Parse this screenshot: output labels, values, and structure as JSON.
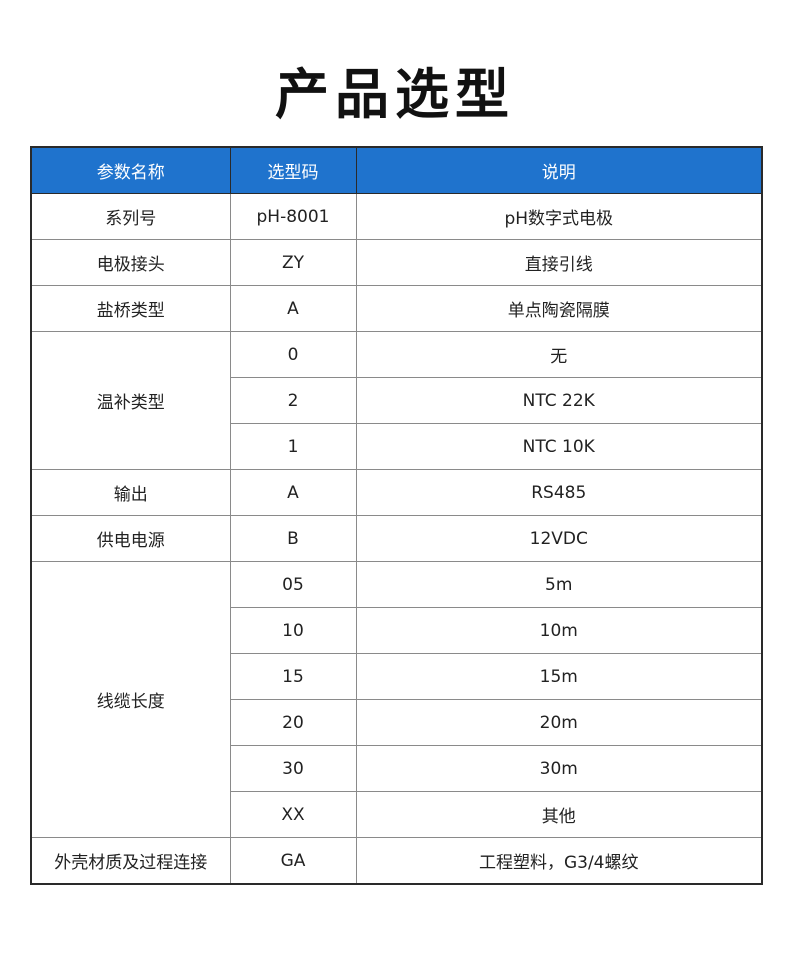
{
  "title": "产品选型",
  "headers": [
    "参数名称",
    "选型码",
    "说明"
  ],
  "accent": "#1f73cd",
  "rows": [
    {
      "param": "系列号",
      "codes": [
        {
          "code": "pH-8001",
          "desc": "pH数字式电极"
        }
      ]
    },
    {
      "param": "电极接头",
      "codes": [
        {
          "code": "ZY",
          "desc": "直接引线"
        }
      ]
    },
    {
      "param": "盐桥类型",
      "codes": [
        {
          "code": "A",
          "desc": "单点陶瓷隔膜"
        }
      ]
    },
    {
      "param": "温补类型",
      "codes": [
        {
          "code": "0",
          "desc": "无"
        },
        {
          "code": "2",
          "desc": "NTC 22K"
        },
        {
          "code": "1",
          "desc": "NTC 10K"
        }
      ]
    },
    {
      "param": "输出",
      "codes": [
        {
          "code": "A",
          "desc": "RS485"
        }
      ]
    },
    {
      "param": "供电电源",
      "codes": [
        {
          "code": "B",
          "desc": "12VDC"
        }
      ]
    },
    {
      "param": "线缆长度",
      "codes": [
        {
          "code": "05",
          "desc": "5m"
        },
        {
          "code": "10",
          "desc": "10m"
        },
        {
          "code": "15",
          "desc": "15m"
        },
        {
          "code": "20",
          "desc": "20m"
        },
        {
          "code": "30",
          "desc": "30m"
        },
        {
          "code": "XX",
          "desc": "其他"
        }
      ]
    },
    {
      "param": "外壳材质及过程连接",
      "codes": [
        {
          "code": "GA",
          "desc": "工程塑料，G3/4螺纹"
        }
      ]
    }
  ]
}
